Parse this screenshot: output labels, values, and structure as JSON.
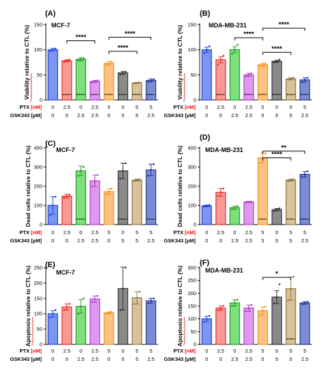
{
  "chart_data": [
    {
      "type": "bar",
      "panel": "(A)",
      "cell_line": "MCF-7",
      "ylabel": "Viability relative to CTL (%)",
      "ylim": [
        0,
        150
      ],
      "yticks": [
        0,
        50,
        100,
        150
      ],
      "ptx": [
        "0",
        "2.5",
        "0",
        "2.5",
        "5",
        "0",
        "5",
        "5"
      ],
      "gsk": [
        "0",
        "0",
        "2.5",
        "2.5",
        "0",
        "5",
        "5",
        "2.5"
      ],
      "values": [
        100,
        78,
        81,
        37,
        73,
        54,
        34,
        39
      ],
      "errors": [
        3,
        2,
        3,
        2,
        4,
        3,
        1,
        3
      ],
      "points": [
        [
          98,
          100,
          102
        ],
        [
          76,
          78,
          80
        ],
        [
          79,
          81,
          83
        ],
        [
          35,
          37,
          39
        ],
        [
          70,
          73,
          76
        ],
        [
          51,
          54,
          56
        ],
        [
          33,
          34,
          35
        ],
        [
          36,
          39,
          41
        ]
      ],
      "baseline_marks": [
        1,
        2,
        3,
        4,
        5,
        6,
        7
      ],
      "brackets": [
        {
          "from": 1,
          "to": 3,
          "level": 118,
          "label": "****"
        },
        {
          "from": 4,
          "to": 6,
          "level": 97,
          "label": "****"
        },
        {
          "from": 4,
          "to": 7,
          "level": 125,
          "label": "****"
        }
      ]
    },
    {
      "type": "bar",
      "panel": "(B)",
      "cell_line": "MDA-MB-231",
      "ylabel": "Viability relative to CTL (%)",
      "ylim": [
        0,
        150
      ],
      "yticks": [
        0,
        50,
        100,
        150
      ],
      "ptx": [
        "0",
        "2.5",
        "0",
        "2.5",
        "5",
        "0",
        "5",
        "5"
      ],
      "gsk": [
        "0",
        "0",
        "2.5",
        "2.5",
        "5",
        "5",
        "5",
        "2.5"
      ],
      "values": [
        100,
        80,
        100,
        50,
        70,
        77,
        42,
        40
      ],
      "errors": [
        5,
        6,
        6,
        3,
        3,
        2,
        2,
        4
      ],
      "points": [
        [
          93,
          100,
          107
        ],
        [
          70,
          80,
          88
        ],
        [
          92,
          100,
          110
        ],
        [
          47,
          50,
          53
        ],
        [
          68,
          70,
          72
        ],
        [
          75,
          77,
          80
        ],
        [
          41,
          42,
          44
        ],
        [
          36,
          40,
          44
        ]
      ],
      "baseline_marks": [
        1,
        3,
        4,
        5,
        6,
        7
      ],
      "brackets": [
        {
          "from": 2,
          "to": 4,
          "level": 124,
          "label": "****"
        },
        {
          "from": 4,
          "to": 6,
          "level": 95,
          "label": "****"
        },
        {
          "from": 4,
          "to": 7,
          "level": 143,
          "label": "****"
        }
      ]
    },
    {
      "type": "bar",
      "panel": "(C)",
      "cell_line": "MCF-7",
      "ylabel": "Dead cells relative to CTL (%)",
      "ylim": [
        0,
        400
      ],
      "yticks": [
        0,
        100,
        200,
        300,
        400
      ],
      "ptx": [
        "0",
        "2.5",
        "0",
        "2.5",
        "5",
        "0",
        "5",
        "5"
      ],
      "gsk": [
        "0",
        "0",
        "2.5",
        "2.5",
        "0",
        "5",
        "5",
        "2.5"
      ],
      "values": [
        100,
        148,
        280,
        228,
        172,
        280,
        232,
        285
      ],
      "errors": [
        45,
        10,
        25,
        30,
        15,
        40,
        5,
        30
      ],
      "points": [
        [
          50,
          100,
          145
        ],
        [
          140,
          148,
          156
        ],
        [
          255,
          280,
          300
        ],
        [
          200,
          228,
          258
        ],
        [
          160,
          172,
          188
        ],
        [
          240,
          280,
          320
        ],
        [
          228,
          232,
          236
        ],
        [
          255,
          285,
          315
        ]
      ],
      "baseline_marks": [
        2,
        5,
        7
      ],
      "brackets": []
    },
    {
      "type": "bar",
      "panel": "(D)",
      "cell_line": "MDA-MB-231",
      "ylabel": "Dead cells relative to CTL (%)",
      "ylim": [
        0,
        400
      ],
      "yticks": [
        0,
        100,
        200,
        300,
        400
      ],
      "ptx": [
        "0",
        "2.5",
        "0",
        "2.5",
        "5",
        "0",
        "5",
        "5"
      ],
      "gsk": [
        "0",
        "0",
        "2.5",
        "2.5",
        "5",
        "5",
        "5",
        "2.5"
      ],
      "values": [
        98,
        168,
        88,
        118,
        348,
        78,
        232,
        262
      ],
      "errors": [
        4,
        20,
        8,
        3,
        25,
        6,
        5,
        15
      ],
      "points": [
        [
          94,
          98,
          102
        ],
        [
          150,
          168,
          188
        ],
        [
          80,
          88,
          96
        ],
        [
          116,
          118,
          120
        ],
        [
          320,
          348,
          370
        ],
        [
          70,
          78,
          85
        ],
        [
          228,
          232,
          236
        ],
        [
          248,
          262,
          278
        ]
      ],
      "baseline_marks": [
        4,
        6,
        7
      ],
      "brackets": [
        {
          "from": 4,
          "to": 6,
          "level": 348,
          "label": "****"
        },
        {
          "from": 4,
          "to": 7,
          "level": 383,
          "label": "**"
        }
      ]
    },
    {
      "type": "bar",
      "panel": "(E)",
      "cell_line": "MCF-7",
      "ylabel": "Apoptosis relative to CTL (%)",
      "ylim": [
        0,
        250
      ],
      "yticks": [
        0,
        50,
        100,
        150,
        200,
        250
      ],
      "ptx": [
        "0",
        "2.5",
        "0",
        "2.5",
        "5",
        "0",
        "5",
        "5"
      ],
      "gsk": [
        "0",
        "0",
        "2.5",
        "2.5",
        "0",
        "5",
        "5",
        "2.5"
      ],
      "values": [
        100,
        122,
        124,
        148,
        103,
        182,
        152,
        142
      ],
      "errors": [
        10,
        10,
        22,
        10,
        3,
        70,
        20,
        8
      ],
      "points": [
        [
          88,
          100,
          112
        ],
        [
          112,
          122,
          132
        ],
        [
          100,
          124,
          150
        ],
        [
          138,
          148,
          158
        ],
        [
          100,
          103,
          106
        ],
        [
          112,
          182,
          250
        ],
        [
          132,
          152,
          172
        ],
        [
          134,
          142,
          150
        ]
      ],
      "baseline_marks": [],
      "brackets": []
    },
    {
      "type": "bar",
      "panel": "(F)",
      "cell_line": "MDA-MB-231",
      "ylabel": "Apoptosis relative to CTL (%)",
      "ylim": [
        0,
        300
      ],
      "yticks": [
        0,
        50,
        100,
        150,
        200,
        250,
        300
      ],
      "ptx": [
        "0",
        "2.5",
        "0",
        "2.5",
        "5",
        "0",
        "5",
        "5"
      ],
      "gsk": [
        "0",
        "0",
        "2.5",
        "2.5",
        "5",
        "5",
        "5",
        "2.5"
      ],
      "values": [
        100,
        142,
        162,
        142,
        132,
        185,
        218,
        162
      ],
      "errors": [
        10,
        8,
        12,
        12,
        15,
        25,
        45,
        5
      ],
      "points": [
        [
          88,
          100,
          112
        ],
        [
          134,
          142,
          150
        ],
        [
          150,
          162,
          175
        ],
        [
          130,
          142,
          154
        ],
        [
          115,
          132,
          148
        ],
        [
          160,
          185,
          235
        ],
        [
          173,
          218,
          265
        ],
        [
          157,
          162,
          167
        ]
      ],
      "baseline_marks": [
        6
      ],
      "brackets": [
        {
          "from": 4,
          "to": 6,
          "level": 262,
          "label": "*"
        }
      ]
    }
  ],
  "row_labels": {
    "ptx": "PTX",
    "ptx_unit": "[nM]",
    "gsk": "GSK343",
    "gsk_unit": "[µM]"
  },
  "colors": {
    "fills": [
      "#7b96f2",
      "#f79a96",
      "#7ee07c",
      "#dd99f0",
      "#fbc383",
      "#8a8a8a",
      "#d7c29a",
      "#7c8cd0"
    ],
    "edges": [
      "#1f43d9",
      "#e52822",
      "#229c22",
      "#b039cc",
      "#f2941e",
      "#2e2e2e",
      "#8f7440",
      "#1a3399"
    ],
    "highlight": "#ff0000",
    "wavy_underline": "#e02020"
  }
}
